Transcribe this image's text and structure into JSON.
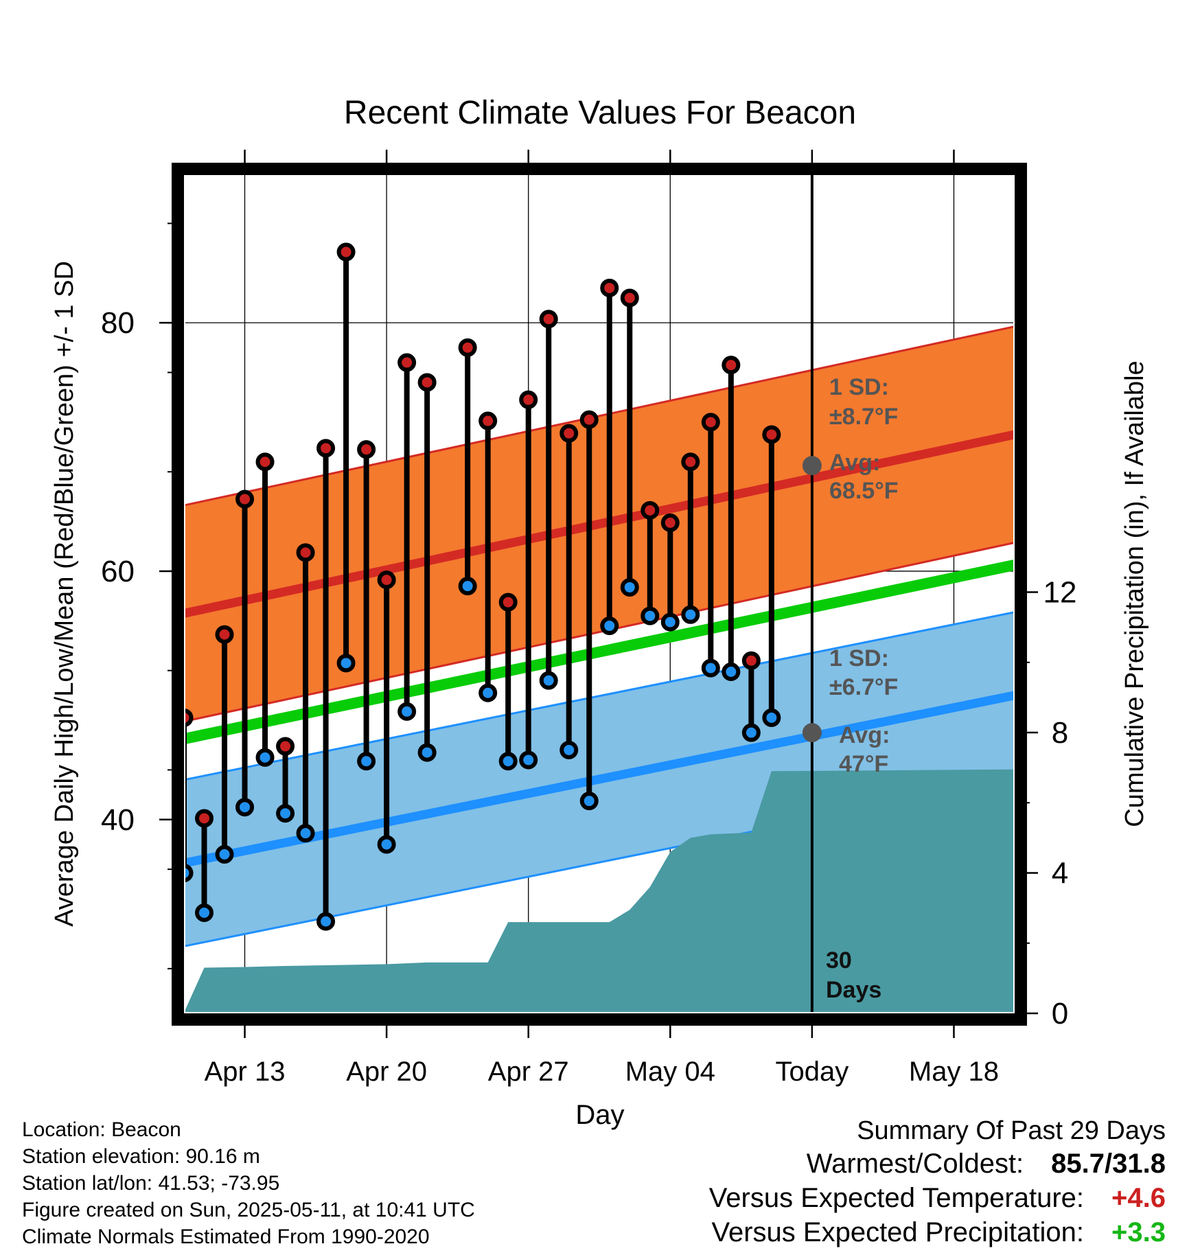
{
  "chart_data": {
    "type": "line",
    "title": "Recent Climate Values For Beacon",
    "xlabel": "Day",
    "ylabel": "Average Daily High/Low/Mean (Red/Blue/Green) +/- 1 SD",
    "y2label": "Cumulative Precipitation (in), If Available",
    "x_ticks": [
      "Apr 13",
      "Apr 20",
      "Apr 27",
      "May 04",
      "Today",
      "May 18"
    ],
    "y_ticks": [
      40,
      60,
      80
    ],
    "y2_ticks": [
      0,
      4,
      8,
      12
    ],
    "ylim": [
      24.4,
      92.5
    ],
    "y2lim": [
      0,
      24.1
    ],
    "xlim": [
      "Apr 10",
      "May 21"
    ],
    "grid": true,
    "today": "May 11",
    "colors": {
      "high_band": "#f47a2e",
      "high_line": "#d42a24",
      "low_band": "#82c0e6",
      "low_line": "#1e90ff",
      "mean_line": "#08cc08",
      "precip": "#4a9aa2",
      "high_dot": "#c82020",
      "low_dot": "#2090ee"
    },
    "normals": {
      "high_avg_start": 56.6,
      "high_avg_end": 71.0,
      "low_avg_start": 36.5,
      "low_avg_end": 50.0,
      "mean_start": 46.5,
      "mean_end": 60.5,
      "high_sd": 8.7,
      "low_sd": 6.7
    },
    "observed": {
      "days": [
        "Apr 10",
        "Apr 11",
        "Apr 12",
        "Apr 13",
        "Apr 14",
        "Apr 15",
        "Apr 16",
        "Apr 17",
        "Apr 18",
        "Apr 19",
        "Apr 20",
        "Apr 21",
        "Apr 22",
        "Apr 23",
        "Apr 24",
        "Apr 25",
        "Apr 26",
        "Apr 27",
        "Apr 28",
        "Apr 29",
        "Apr 30",
        "May 01",
        "May 02",
        "May 03",
        "May 04",
        "May 05",
        "May 06",
        "May 07",
        "May 08",
        "May 09",
        "May 10"
      ],
      "high": [
        48.2,
        40.1,
        54.9,
        65.8,
        68.8,
        45.9,
        61.5,
        69.9,
        85.7,
        69.8,
        59.3,
        76.8,
        75.2,
        null,
        78.0,
        72.1,
        57.5,
        73.8,
        80.3,
        71.1,
        72.2,
        82.8,
        82.0,
        64.9,
        63.9,
        68.8,
        72.0,
        76.6,
        52.8,
        71.0,
        null
      ],
      "low": [
        35.7,
        32.5,
        37.2,
        41.0,
        45.0,
        40.5,
        38.9,
        31.8,
        52.6,
        44.7,
        38.0,
        48.7,
        45.4,
        null,
        58.8,
        50.2,
        44.7,
        44.8,
        51.2,
        45.6,
        41.5,
        55.6,
        58.7,
        56.4,
        55.9,
        56.5,
        52.2,
        51.9,
        47.0,
        48.2,
        null
      ]
    },
    "precip_cumulative": {
      "days": [
        "Apr 10",
        "Apr 10",
        "Apr 11",
        "Apr 13",
        "Apr 15",
        "Apr 20",
        "Apr 22",
        "Apr 25",
        "Apr 26",
        "May 01",
        "May 02",
        "May 03",
        "May 04",
        "May 05",
        "May 06",
        "May 08",
        "May 09",
        "May 21"
      ],
      "values": [
        0.0,
        0.02,
        1.3,
        1.32,
        1.35,
        1.4,
        1.45,
        1.45,
        2.6,
        2.6,
        2.95,
        3.6,
        4.6,
        5.0,
        5.1,
        5.15,
        6.9,
        6.95
      ]
    },
    "annotations": {
      "high_sd_label": "1 SD:",
      "high_sd_value": "±8.7°F",
      "high_avg_label": "Avg:",
      "high_avg_value": "68.5°F",
      "low_sd_label": "1 SD:",
      "low_sd_value": "±6.7°F",
      "low_avg_label": "Avg:",
      "low_avg_value": "47°F",
      "window_label_1": "30",
      "window_label_2": "Days"
    }
  },
  "meta": {
    "location": "Location: Beacon",
    "elevation": "Station elevation: 90.16 m",
    "latlon": "Station lat/lon: 41.53; -73.95",
    "created": "Figure created on Sun, 2025-05-11, at 10:41 UTC",
    "normals": "Climate Normals Estimated From 1990-2020"
  },
  "summary": {
    "title": "Summary Of Past 29 Days",
    "warmest_label": "Warmest/Coldest:",
    "warmest_value": "85.7/31.8",
    "temp_label": "Versus Expected Temperature:",
    "temp_value": "+4.6",
    "precip_label": "Versus Expected Precipitation:",
    "precip_value": "+3.3"
  }
}
